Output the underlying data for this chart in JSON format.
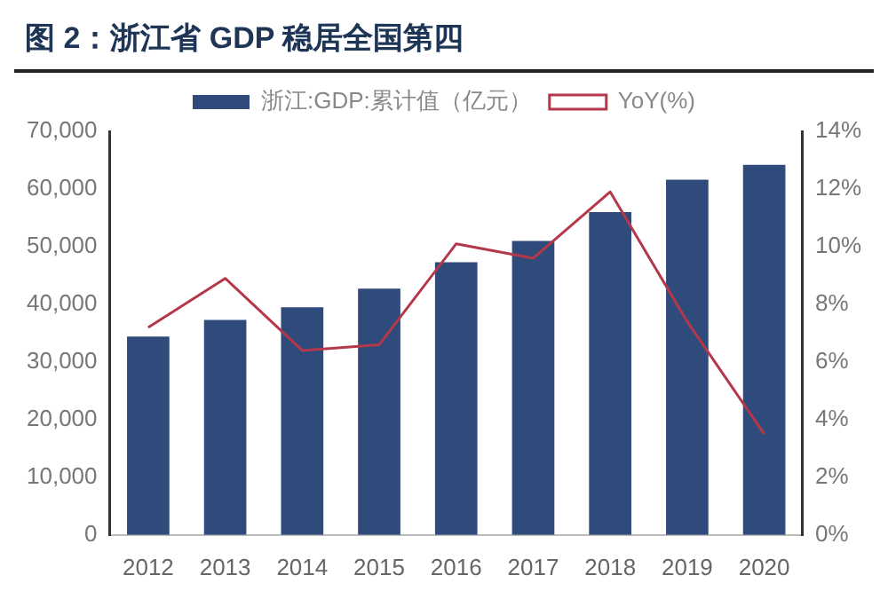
{
  "chart_data": {
    "type": "bar",
    "title": "图 2：浙江省 GDP 稳居全国第四",
    "categories": [
      "2012",
      "2013",
      "2014",
      "2015",
      "2016",
      "2017",
      "2018",
      "2019",
      "2020"
    ],
    "series": [
      {
        "name": "浙江:GDP:累计值（亿元）",
        "color": "#2f4b7c",
        "values": [
          34400,
          37300,
          39500,
          42700,
          47300,
          51000,
          56000,
          61600,
          64200
        ]
      },
      {
        "name": "YoY(%)",
        "type": "line",
        "axis": "y2",
        "color": "#b5384a",
        "marker": "none",
        "values": [
          7.2,
          8.9,
          6.4,
          6.6,
          10.1,
          9.6,
          11.9,
          7.4,
          3.5
        ]
      }
    ],
    "ylim": [
      0,
      70000
    ],
    "yticks": [
      {
        "value": 0,
        "label": "0"
      },
      {
        "value": 10000,
        "label": "10,000"
      },
      {
        "value": 20000,
        "label": "20,000"
      },
      {
        "value": 30000,
        "label": "30,000"
      },
      {
        "value": 40000,
        "label": "40,000"
      },
      {
        "value": 50000,
        "label": "50,000"
      },
      {
        "value": 60000,
        "label": "60,000"
      },
      {
        "value": 70000,
        "label": "70,000"
      }
    ],
    "y2lim": [
      0,
      14
    ],
    "y2ticks": [
      {
        "value": 0,
        "label": "0%"
      },
      {
        "value": 2,
        "label": "2%"
      },
      {
        "value": 4,
        "label": "4%"
      },
      {
        "value": 6,
        "label": "6%"
      },
      {
        "value": 8,
        "label": "8%"
      },
      {
        "value": 10,
        "label": "10%"
      },
      {
        "value": 12,
        "label": "12%"
      },
      {
        "value": 14,
        "label": "14%"
      }
    ],
    "grid": false,
    "legend": "top"
  }
}
